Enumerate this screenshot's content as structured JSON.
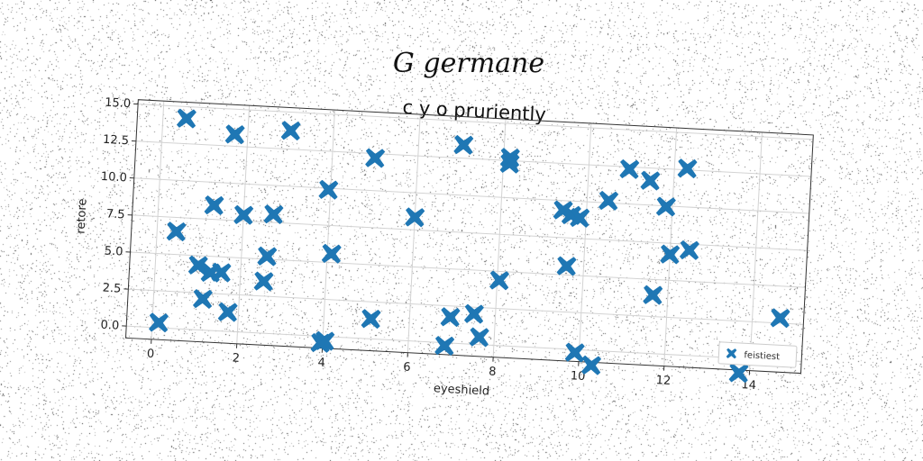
{
  "suptitle": "G germane",
  "chart_data": {
    "type": "scatter",
    "title": "c y o pruriently",
    "xlabel": "eyeshield",
    "ylabel": "retore",
    "xlim": [
      -0.6,
      15.2
    ],
    "ylim": [
      -0.8,
      15.3
    ],
    "xticks": [
      0,
      2,
      4,
      6,
      8,
      10,
      12,
      14
    ],
    "yticks": [
      0.0,
      2.5,
      5.0,
      7.5,
      10.0,
      12.5,
      15.0
    ],
    "grid": true,
    "legend": {
      "placement": "lower-right"
    },
    "series": [
      {
        "name": "feistiest",
        "color": "#1f77b4",
        "marker": "x-filled",
        "points": [
          [
            0.15,
            0.35
          ],
          [
            0.55,
            14.2
          ],
          [
            0.45,
            6.55
          ],
          [
            1.0,
            4.35
          ],
          [
            1.15,
            2.1
          ],
          [
            1.3,
            8.45
          ],
          [
            1.3,
            3.9
          ],
          [
            1.55,
            3.95
          ],
          [
            1.7,
            13.3
          ],
          [
            1.75,
            1.3
          ],
          [
            2.0,
            7.9
          ],
          [
            2.55,
            3.5
          ],
          [
            2.6,
            5.2
          ],
          [
            2.7,
            8.05
          ],
          [
            3.0,
            13.75
          ],
          [
            3.95,
            9.9
          ],
          [
            3.95,
            -0.45
          ],
          [
            4.05,
            -0.3
          ],
          [
            4.1,
            5.6
          ],
          [
            5.0,
            12.2
          ],
          [
            5.1,
            1.35
          ],
          [
            6.0,
            8.35
          ],
          [
            6.85,
            -0.2
          ],
          [
            6.95,
            1.75
          ],
          [
            7.05,
            13.4
          ],
          [
            7.5,
            2.05
          ],
          [
            7.65,
            0.5
          ],
          [
            8.05,
            4.4
          ],
          [
            8.15,
            12.3
          ],
          [
            8.15,
            12.7
          ],
          [
            9.45,
            9.35
          ],
          [
            9.6,
            5.6
          ],
          [
            9.65,
            9.05
          ],
          [
            9.85,
            8.9
          ],
          [
            9.9,
            -0.2
          ],
          [
            10.3,
            -1.0
          ],
          [
            10.5,
            10.15
          ],
          [
            10.95,
            12.35
          ],
          [
            11.45,
            11.65
          ],
          [
            11.65,
            3.95
          ],
          [
            11.85,
            9.95
          ],
          [
            12.0,
            6.75
          ],
          [
            12.3,
            12.6
          ],
          [
            12.45,
            7.1
          ],
          [
            13.75,
            -1.0
          ],
          [
            14.65,
            2.85
          ]
        ]
      }
    ]
  }
}
